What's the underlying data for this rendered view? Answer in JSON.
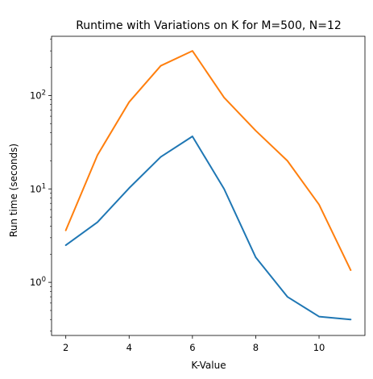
{
  "chart_data": {
    "type": "line",
    "title": "Runtime with Variations on K for M=500, N=12",
    "xlabel": "K-Value",
    "ylabel": "Run time (seconds)",
    "x_scale": "linear",
    "y_scale": "log",
    "xlim": [
      1.55,
      11.45
    ],
    "ylim": [
      0.27,
      430
    ],
    "xticks": [
      2,
      4,
      6,
      8,
      10
    ],
    "yticks": [
      {
        "value": 1,
        "base": "10",
        "exp": "0"
      },
      {
        "value": 10,
        "base": "10",
        "exp": "1"
      },
      {
        "value": 100,
        "base": "10",
        "exp": "2"
      }
    ],
    "grid": false,
    "legend": "none",
    "series": [
      {
        "color": "#1f77b4",
        "x": [
          2,
          3,
          4,
          5,
          6,
          7,
          8,
          9,
          10,
          11
        ],
        "values": [
          2.5,
          4.4,
          10.2,
          22.0,
          36.5,
          10.0,
          1.85,
          0.7,
          0.43,
          0.4
        ]
      },
      {
        "color": "#ff7f0e",
        "x": [
          2,
          3,
          4,
          5,
          6,
          7,
          8,
          9,
          10,
          11
        ],
        "values": [
          3.6,
          23.0,
          85.0,
          208.0,
          300.0,
          95.0,
          42.0,
          20.0,
          6.8,
          1.35
        ]
      }
    ]
  }
}
